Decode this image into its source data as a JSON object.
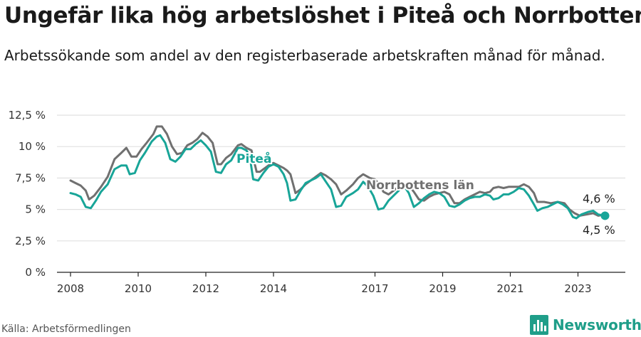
{
  "title": "Ungefär lika hög arbetslöshet i Piteå och Norrbotten",
  "subtitle": "Arbetssökande som andel av den registerbaserade arbetskraften månad för månad.",
  "source": "Källa: Arbetsförmedlingen",
  "brand": {
    "name": "Newsworthy",
    "color": "#1f9e89",
    "icon": "bar-chart-logo-icon"
  },
  "colors": {
    "pitea": "#18a598",
    "norrbotten": "#707070",
    "grid": "#e1e1e1",
    "axis": "#222222"
  },
  "chart_data": {
    "type": "line",
    "title": "Ungefär lika hög arbetslöshet i Piteå och Norrbotten",
    "xlabel": "",
    "ylabel": "",
    "xlim": [
      2007.6,
      2024.4
    ],
    "ylim": [
      0,
      12.5
    ],
    "x_ticks": [
      2008,
      2010,
      2012,
      2014,
      2017,
      2019,
      2021,
      2023
    ],
    "x_tick_labels": [
      "2008",
      "2010",
      "2012",
      "2014",
      "2017",
      "2019",
      "2021",
      "2023"
    ],
    "y_ticks": [
      0,
      2.5,
      5,
      7.5,
      10,
      12.5
    ],
    "y_tick_labels": [
      "0 %",
      "2,5 %",
      "5 %",
      "7,5 %",
      "10 %",
      "12,5 %"
    ],
    "grid": true,
    "series": [
      {
        "name": "Norrbottens län",
        "color": "#707070",
        "end_label": "4,6 %",
        "points": [
          [
            2008.0,
            7.3
          ],
          [
            2008.15,
            7.1
          ],
          [
            2008.3,
            6.9
          ],
          [
            2008.45,
            6.5
          ],
          [
            2008.55,
            5.8
          ],
          [
            2008.7,
            6.1
          ],
          [
            2008.9,
            6.8
          ],
          [
            2009.1,
            7.6
          ],
          [
            2009.3,
            9.0
          ],
          [
            2009.5,
            9.5
          ],
          [
            2009.65,
            9.9
          ],
          [
            2009.8,
            9.2
          ],
          [
            2009.95,
            9.2
          ],
          [
            2010.1,
            9.8
          ],
          [
            2010.25,
            10.3
          ],
          [
            2010.45,
            11.0
          ],
          [
            2010.55,
            11.6
          ],
          [
            2010.7,
            11.6
          ],
          [
            2010.85,
            11.0
          ],
          [
            2011.0,
            10.0
          ],
          [
            2011.15,
            9.4
          ],
          [
            2011.3,
            9.5
          ],
          [
            2011.45,
            10.1
          ],
          [
            2011.6,
            10.3
          ],
          [
            2011.75,
            10.6
          ],
          [
            2011.9,
            11.1
          ],
          [
            2012.05,
            10.8
          ],
          [
            2012.2,
            10.3
          ],
          [
            2012.35,
            8.6
          ],
          [
            2012.45,
            8.6
          ],
          [
            2012.6,
            9.1
          ],
          [
            2012.75,
            9.4
          ],
          [
            2012.95,
            10.1
          ],
          [
            2013.05,
            10.2
          ],
          [
            2013.2,
            9.9
          ],
          [
            2013.35,
            9.7
          ],
          [
            2013.5,
            8.0
          ],
          [
            2013.6,
            8.0
          ],
          [
            2013.75,
            8.3
          ],
          [
            2013.9,
            8.6
          ],
          [
            2014.0,
            8.7
          ],
          [
            2014.15,
            8.5
          ],
          [
            2014.3,
            8.3
          ],
          [
            2014.4,
            8.1
          ],
          [
            2014.5,
            7.8
          ],
          [
            2014.65,
            6.3
          ],
          [
            2014.8,
            6.6
          ],
          [
            2014.95,
            7.0
          ],
          [
            2015.1,
            7.3
          ],
          [
            2015.25,
            7.6
          ],
          [
            2015.4,
            7.9
          ],
          [
            2015.55,
            7.7
          ],
          [
            2015.7,
            7.4
          ],
          [
            2015.85,
            7.0
          ],
          [
            2016.0,
            6.2
          ],
          [
            2016.15,
            6.5
          ],
          [
            2016.35,
            7.0
          ],
          [
            2016.5,
            7.5
          ],
          [
            2016.65,
            7.8
          ],
          [
            2016.85,
            7.5
          ],
          [
            2017.0,
            7.4
          ],
          [
            2017.15,
            6.9
          ],
          [
            2017.25,
            6.4
          ],
          [
            2017.4,
            6.2
          ],
          [
            2017.55,
            6.5
          ],
          [
            2017.7,
            6.8
          ],
          [
            2017.85,
            6.8
          ],
          [
            2018.0,
            6.9
          ],
          [
            2018.15,
            6.4
          ],
          [
            2018.3,
            5.8
          ],
          [
            2018.45,
            5.7
          ],
          [
            2018.6,
            6.0
          ],
          [
            2018.75,
            6.2
          ],
          [
            2018.9,
            6.3
          ],
          [
            2019.05,
            6.4
          ],
          [
            2019.2,
            6.2
          ],
          [
            2019.35,
            5.5
          ],
          [
            2019.5,
            5.5
          ],
          [
            2019.65,
            5.8
          ],
          [
            2019.8,
            6.0
          ],
          [
            2019.95,
            6.2
          ],
          [
            2020.1,
            6.4
          ],
          [
            2020.25,
            6.3
          ],
          [
            2020.4,
            6.4
          ],
          [
            2020.5,
            6.7
          ],
          [
            2020.65,
            6.8
          ],
          [
            2020.8,
            6.7
          ],
          [
            2020.95,
            6.8
          ],
          [
            2021.1,
            6.8
          ],
          [
            2021.25,
            6.8
          ],
          [
            2021.4,
            7.0
          ],
          [
            2021.55,
            6.8
          ],
          [
            2021.7,
            6.3
          ],
          [
            2021.8,
            5.6
          ],
          [
            2022.0,
            5.6
          ],
          [
            2022.2,
            5.5
          ],
          [
            2022.4,
            5.6
          ],
          [
            2022.6,
            5.5
          ],
          [
            2022.75,
            5.0
          ],
          [
            2022.9,
            4.7
          ],
          [
            2023.05,
            4.5
          ],
          [
            2023.25,
            4.6
          ],
          [
            2023.45,
            4.7
          ],
          [
            2023.6,
            4.5
          ],
          [
            2023.8,
            4.6
          ]
        ]
      },
      {
        "name": "Piteå",
        "color": "#18a598",
        "end_label": "4,5 %",
        "points": [
          [
            2008.0,
            6.3
          ],
          [
            2008.15,
            6.2
          ],
          [
            2008.3,
            6.0
          ],
          [
            2008.45,
            5.2
          ],
          [
            2008.6,
            5.1
          ],
          [
            2008.75,
            5.7
          ],
          [
            2008.9,
            6.4
          ],
          [
            2009.1,
            7.0
          ],
          [
            2009.3,
            8.2
          ],
          [
            2009.5,
            8.5
          ],
          [
            2009.65,
            8.5
          ],
          [
            2009.75,
            7.8
          ],
          [
            2009.9,
            7.9
          ],
          [
            2010.05,
            8.9
          ],
          [
            2010.2,
            9.5
          ],
          [
            2010.4,
            10.4
          ],
          [
            2010.55,
            10.8
          ],
          [
            2010.65,
            10.9
          ],
          [
            2010.8,
            10.3
          ],
          [
            2010.95,
            9.0
          ],
          [
            2011.1,
            8.8
          ],
          [
            2011.25,
            9.2
          ],
          [
            2011.4,
            9.8
          ],
          [
            2011.55,
            9.8
          ],
          [
            2011.7,
            10.2
          ],
          [
            2011.85,
            10.5
          ],
          [
            2012.0,
            10.1
          ],
          [
            2012.15,
            9.6
          ],
          [
            2012.3,
            8.0
          ],
          [
            2012.45,
            7.9
          ],
          [
            2012.6,
            8.6
          ],
          [
            2012.75,
            8.9
          ],
          [
            2012.95,
            9.9
          ],
          [
            2013.05,
            9.9
          ],
          [
            2013.2,
            9.7
          ],
          [
            2013.3,
            9.2
          ],
          [
            2013.4,
            7.4
          ],
          [
            2013.55,
            7.3
          ],
          [
            2013.7,
            7.9
          ],
          [
            2013.85,
            8.4
          ],
          [
            2014.0,
            8.6
          ],
          [
            2014.15,
            8.4
          ],
          [
            2014.3,
            7.8
          ],
          [
            2014.4,
            7.1
          ],
          [
            2014.5,
            5.7
          ],
          [
            2014.65,
            5.8
          ],
          [
            2014.8,
            6.5
          ],
          [
            2014.95,
            7.1
          ],
          [
            2015.1,
            7.3
          ],
          [
            2015.25,
            7.5
          ],
          [
            2015.4,
            7.8
          ],
          [
            2015.55,
            7.2
          ],
          [
            2015.7,
            6.6
          ],
          [
            2015.85,
            5.2
          ],
          [
            2016.0,
            5.3
          ],
          [
            2016.15,
            6.0
          ],
          [
            2016.35,
            6.3
          ],
          [
            2016.5,
            6.6
          ],
          [
            2016.65,
            7.2
          ],
          [
            2016.8,
            6.8
          ],
          [
            2016.95,
            6.1
          ],
          [
            2017.1,
            5.0
          ],
          [
            2017.25,
            5.1
          ],
          [
            2017.4,
            5.7
          ],
          [
            2017.55,
            6.1
          ],
          [
            2017.7,
            6.5
          ],
          [
            2017.85,
            6.9
          ],
          [
            2018.0,
            6.3
          ],
          [
            2018.15,
            5.2
          ],
          [
            2018.3,
            5.5
          ],
          [
            2018.45,
            5.9
          ],
          [
            2018.6,
            6.2
          ],
          [
            2018.75,
            6.4
          ],
          [
            2018.9,
            6.3
          ],
          [
            2019.05,
            6.0
          ],
          [
            2019.2,
            5.3
          ],
          [
            2019.35,
            5.2
          ],
          [
            2019.5,
            5.4
          ],
          [
            2019.65,
            5.7
          ],
          [
            2019.8,
            5.9
          ],
          [
            2019.95,
            6.0
          ],
          [
            2020.1,
            6.0
          ],
          [
            2020.25,
            6.2
          ],
          [
            2020.4,
            6.1
          ],
          [
            2020.5,
            5.8
          ],
          [
            2020.65,
            5.9
          ],
          [
            2020.8,
            6.2
          ],
          [
            2020.95,
            6.2
          ],
          [
            2021.1,
            6.4
          ],
          [
            2021.25,
            6.7
          ],
          [
            2021.4,
            6.6
          ],
          [
            2021.55,
            6.1
          ],
          [
            2021.7,
            5.4
          ],
          [
            2021.8,
            4.9
          ],
          [
            2021.95,
            5.1
          ],
          [
            2022.1,
            5.2
          ],
          [
            2022.25,
            5.4
          ],
          [
            2022.4,
            5.6
          ],
          [
            2022.55,
            5.4
          ],
          [
            2022.7,
            5.1
          ],
          [
            2022.85,
            4.4
          ],
          [
            2022.95,
            4.3
          ],
          [
            2023.1,
            4.6
          ],
          [
            2023.3,
            4.8
          ],
          [
            2023.45,
            4.9
          ],
          [
            2023.6,
            4.6
          ],
          [
            2023.8,
            4.5
          ]
        ]
      }
    ]
  }
}
